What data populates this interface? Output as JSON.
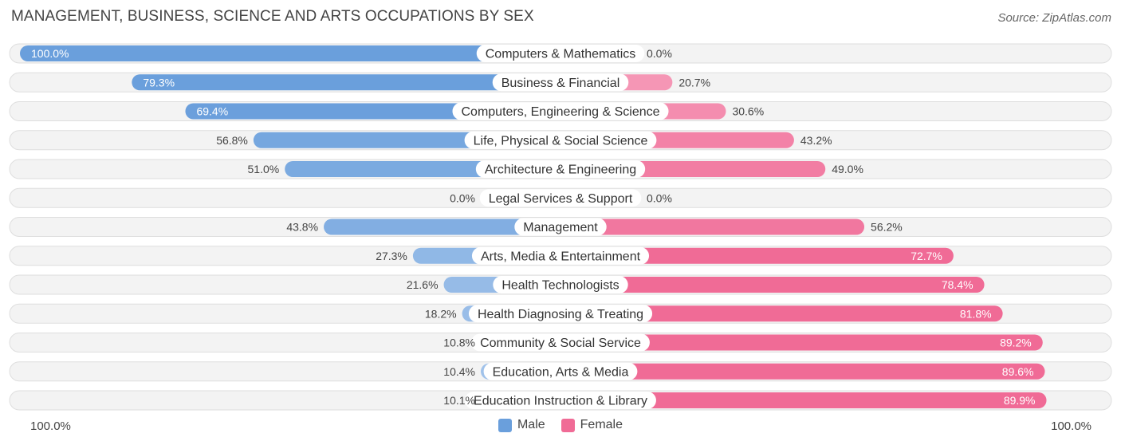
{
  "header": {
    "title": "MANAGEMENT, BUSINESS, SCIENCE AND ARTS OCCUPATIONS BY SEX",
    "source": "Source: ZipAtlas.com"
  },
  "axis": {
    "left_label": "100.0%",
    "right_label": "100.0%"
  },
  "legend": {
    "male_label": "Male",
    "female_label": "Female"
  },
  "colors": {
    "male_strong": "#6a9fdc",
    "male_light": "#a9c8ec",
    "female_strong": "#f06b96",
    "female_light": "#f7a8c2",
    "row_bg": "#eeeeee"
  },
  "chart_data": {
    "type": "bar",
    "orientation": "horizontal-diverging",
    "title": "MANAGEMENT, BUSINESS, SCIENCE AND ARTS OCCUPATIONS BY SEX",
    "xlim": [
      -100,
      100
    ],
    "categories": [
      "Computers & Mathematics",
      "Business & Financial",
      "Computers, Engineering & Science",
      "Life, Physical & Social Science",
      "Architecture & Engineering",
      "Legal Services & Support",
      "Management",
      "Arts, Media & Entertainment",
      "Health Technologists",
      "Health Diagnosing & Treating",
      "Community & Social Service",
      "Education, Arts & Media",
      "Education Instruction & Library"
    ],
    "series": [
      {
        "name": "Male",
        "values": [
          100.0,
          79.3,
          69.4,
          56.8,
          51.0,
          0.0,
          43.8,
          27.3,
          21.6,
          18.2,
          10.8,
          10.4,
          10.1
        ],
        "labels": [
          "100.0%",
          "79.3%",
          "69.4%",
          "56.8%",
          "51.0%",
          "0.0%",
          "43.8%",
          "27.3%",
          "21.6%",
          "18.2%",
          "10.8%",
          "10.4%",
          "10.1%"
        ]
      },
      {
        "name": "Female",
        "values": [
          0.0,
          20.7,
          30.6,
          43.2,
          49.0,
          0.0,
          56.2,
          72.7,
          78.4,
          81.8,
          89.2,
          89.6,
          89.9
        ],
        "labels": [
          "0.0%",
          "20.7%",
          "30.6%",
          "43.2%",
          "49.0%",
          "0.0%",
          "56.2%",
          "72.7%",
          "78.4%",
          "81.8%",
          "89.2%",
          "89.6%",
          "89.9%"
        ]
      }
    ]
  }
}
